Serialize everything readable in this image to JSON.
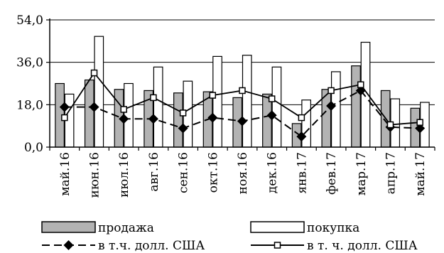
{
  "chart_data": {
    "type": "bar",
    "categories": [
      "май.16",
      "июн.16",
      "июл.16",
      "авг.16",
      "сен.16",
      "окт.16",
      "ноя.16",
      "дек.16",
      "янв.17",
      "фев.17",
      "мар.17",
      "апр.17",
      "май.17"
    ],
    "ylim": [
      0,
      54
    ],
    "yticks": [
      "0,0",
      "18,0",
      "36,0",
      "54,0"
    ],
    "grid": true,
    "legend_position": "bottom",
    "series": [
      {
        "name": "продажа",
        "kind": "bar",
        "color": "#b3b3b3",
        "values": [
          27.0,
          28.5,
          24.5,
          24.0,
          23.0,
          23.5,
          21.0,
          22.5,
          10.0,
          24.5,
          34.5,
          24.0,
          16.5
        ]
      },
      {
        "name": "покупка",
        "kind": "bar",
        "color": "#ffffff",
        "values": [
          22.5,
          47.0,
          27.0,
          34.0,
          28.0,
          38.5,
          39.0,
          34.0,
          20.0,
          32.0,
          44.5,
          20.5,
          19.0
        ]
      },
      {
        "name": "в т.ч. долл. США",
        "kind": "line",
        "style": "dashed",
        "marker": "diamond",
        "color": "#000000",
        "values": [
          17.0,
          17.0,
          12.0,
          12.0,
          8.0,
          12.5,
          11.0,
          13.5,
          4.5,
          17.5,
          24.0,
          8.5,
          8.0
        ]
      },
      {
        "name": "в т. ч. долл. США",
        "kind": "line",
        "style": "solid",
        "marker": "square",
        "color": "#000000",
        "values": [
          12.5,
          31.5,
          16.0,
          21.0,
          14.5,
          22.0,
          24.0,
          20.5,
          12.5,
          24.0,
          26.5,
          9.5,
          10.5
        ]
      }
    ]
  }
}
